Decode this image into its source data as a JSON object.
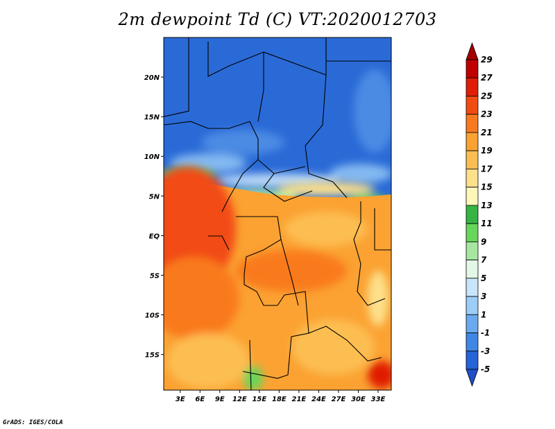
{
  "title": "2m dewpoint Td (C) VT:2020012703",
  "credit": "GrADS: IGES/COLA",
  "map": {
    "lat_labels": [
      "20N",
      "15N",
      "10N",
      "5N",
      "EQ",
      "5S",
      "10S",
      "15S"
    ],
    "lat_values": [
      20,
      15,
      10,
      5,
      0,
      -5,
      -10,
      -15
    ],
    "lon_labels": [
      "3E",
      "6E",
      "9E",
      "12E",
      "15E",
      "18E",
      "21E",
      "24E",
      "27E",
      "30E",
      "33E"
    ],
    "lon_values": [
      3,
      6,
      9,
      12,
      15,
      18,
      21,
      24,
      27,
      30,
      33
    ],
    "lon_range": [
      0.5,
      35
    ],
    "lat_range": [
      -19.5,
      25
    ]
  },
  "colorbar": {
    "levels": [
      "29",
      "27",
      "25",
      "23",
      "21",
      "19",
      "17",
      "15",
      "13",
      "11",
      "9",
      "7",
      "5",
      "3",
      "1",
      "-1",
      "-3",
      "-5"
    ],
    "colors": [
      "#a50000",
      "#c00000",
      "#e01d06",
      "#f24b12",
      "#f97a1e",
      "#fba232",
      "#fdbe51",
      "#fde08a",
      "#fdf7b9",
      "#36b443",
      "#67d65a",
      "#a7e6a0",
      "#e3f7e6",
      "#c9e5fb",
      "#9ccdf7",
      "#6aa9ef",
      "#3f87e6",
      "#2563d8",
      "#1f4fc8"
    ]
  }
}
